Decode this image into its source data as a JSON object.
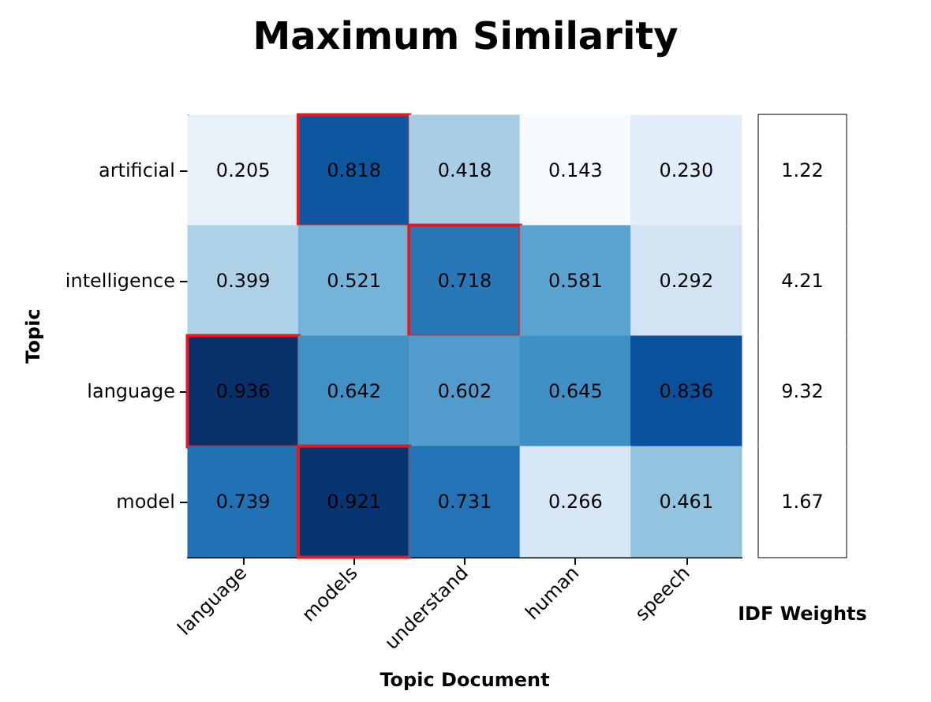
{
  "chart_data": [
    {
      "type": "heatmap",
      "title": "Maximum Similarity",
      "xlabel": "Topic Document",
      "ylabel": "Topic",
      "categories": [
        "language",
        "models",
        "understand",
        "human",
        "speech"
      ],
      "y_categories": [
        "artificial",
        "intelligence",
        "language",
        "model"
      ],
      "data_labels": true,
      "cells": [
        [
          0.205,
          0.818,
          0.418,
          0.143,
          0.23
        ],
        [
          0.399,
          0.521,
          0.718,
          0.581,
          0.292
        ],
        [
          0.936,
          0.642,
          0.602,
          0.645,
          0.836
        ],
        [
          0.739,
          0.921,
          0.731,
          0.266,
          0.461
        ]
      ],
      "cell_labels": [
        [
          "0.205",
          "0.818",
          "0.418",
          "0.143",
          "0.230"
        ],
        [
          "0.399",
          "0.521",
          "0.718",
          "0.581",
          "0.292"
        ],
        [
          "0.936",
          "0.642",
          "0.602",
          "0.645",
          "0.836"
        ],
        [
          "0.739",
          "0.921",
          "0.731",
          "0.266",
          "0.461"
        ]
      ]
    },
    {
      "type": "other",
      "xlabel": "IDF Weights",
      "data_labels": true,
      "values": [
        1.22,
        4.21,
        9.32,
        1.67
      ]
    }
  ]
}
